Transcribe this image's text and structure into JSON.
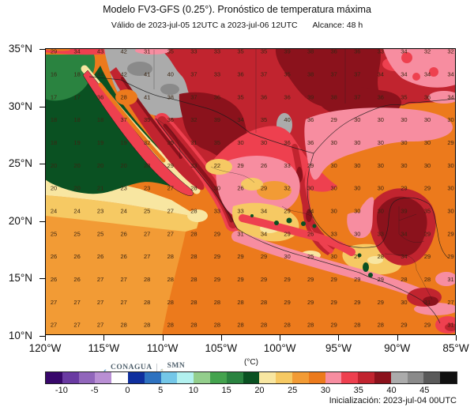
{
  "header": {
    "title": "Modelo FV3-GFS (0.25°). Pronóstico de temperatura máxima",
    "valid_text": "Válido de 2023-jul-05 12UTC a 2023-jul-06 12UTC",
    "range_text": "Alcance: 48 h"
  },
  "footer": {
    "init_text": "Inicialización: 2023-jul-04 00UTC"
  },
  "logos": {
    "conagua": "CONAGUA",
    "conagua_sub": "COMISIÓN NACIONAL DEL AGUA",
    "smn": "SMN",
    "smn_sub1": "SERVICIO",
    "smn_sub2": "METEOROLÓGICO NACIONAL",
    "conagua_blue": "#1B75BB",
    "smn_gold": "#C8960C"
  },
  "chart_data": {
    "type": "heatmap",
    "title": "Modelo FV3-GFS (0.25°). Pronóstico de temperatura máxima",
    "subtitle": "Válido de 2023-jul-05 12UTC a 2023-jul-06 12UTC  Alcance: 48 h",
    "lat_ticks": [
      {
        "label": "35°N",
        "lat": 35
      },
      {
        "label": "30°N",
        "lat": 30
      },
      {
        "label": "25°N",
        "lat": 25
      },
      {
        "label": "20°N",
        "lat": 20
      },
      {
        "label": "15°N",
        "lat": 15
      },
      {
        "label": "10°N",
        "lat": 10
      }
    ],
    "lon_ticks": [
      {
        "label": "120°W",
        "lon": 120
      },
      {
        "label": "115°W",
        "lon": 115
      },
      {
        "label": "110°W",
        "lon": 110
      },
      {
        "label": "105°W",
        "lon": 105
      },
      {
        "label": "100°W",
        "lon": 100
      },
      {
        "label": "95°W",
        "lon": 95
      },
      {
        "label": "90°W",
        "lon": 90
      },
      {
        "label": "85°W",
        "lon": 85
      }
    ],
    "grid_row_lats": [
      35,
      33,
      31,
      29,
      27,
      25,
      23,
      21,
      19,
      17,
      15,
      13,
      11
    ],
    "values": [
      [
        29,
        34,
        43,
        42,
        31,
        35,
        33,
        33,
        35,
        35,
        39,
        38,
        36,
        36,
        33,
        34,
        32,
        32
      ],
      [
        16,
        18,
        44,
        42,
        41,
        40,
        37,
        33,
        36,
        37,
        35,
        38,
        37,
        37,
        34,
        34,
        34,
        34
      ],
      [
        17,
        17,
        36,
        28,
        41,
        38,
        37,
        36,
        35,
        36,
        36,
        39,
        38,
        37,
        36,
        35,
        36,
        34
      ],
      [
        18,
        18,
        18,
        37,
        35,
        36,
        32,
        39,
        34,
        35,
        40,
        36,
        29,
        30,
        30,
        30,
        30,
        30
      ],
      [
        18,
        19,
        19,
        19,
        32,
        35,
        31,
        35,
        30,
        30,
        36,
        36,
        30,
        30,
        30,
        30,
        30,
        29
      ],
      [
        20,
        20,
        20,
        20,
        28,
        29,
        33,
        22,
        29,
        26,
        33,
        29,
        30,
        30,
        30,
        30,
        30,
        30
      ],
      [
        20,
        20,
        21,
        23,
        23,
        27,
        28,
        30,
        26,
        29,
        32,
        30,
        30,
        30,
        30,
        29,
        29,
        30
      ],
      [
        24,
        24,
        23,
        24,
        25,
        27,
        28,
        33,
        33,
        34,
        29,
        34,
        30,
        30,
        30,
        39,
        35,
        30
      ],
      [
        25,
        25,
        25,
        26,
        27,
        27,
        28,
        29,
        31,
        34,
        29,
        26,
        33,
        30,
        33,
        34,
        29,
        29
      ],
      [
        26,
        26,
        26,
        26,
        27,
        28,
        28,
        29,
        29,
        29,
        30,
        25,
        30,
        27,
        28,
        34,
        29,
        29
      ],
      [
        26,
        26,
        27,
        27,
        28,
        28,
        28,
        29,
        29,
        29,
        29,
        29,
        29,
        29,
        29,
        28,
        28,
        31
      ],
      [
        27,
        27,
        27,
        27,
        28,
        28,
        28,
        28,
        28,
        28,
        29,
        29,
        29,
        29,
        29,
        30,
        31,
        27
      ],
      [
        27,
        27,
        27,
        28,
        28,
        28,
        28,
        28,
        28,
        28,
        28,
        28,
        29,
        28,
        28,
        29,
        29,
        31
      ]
    ],
    "colorbar": {
      "label": "(°C)",
      "range": [
        -12.5,
        50
      ],
      "step": 2.5,
      "ticks": [
        -10,
        -5,
        0,
        5,
        10,
        15,
        20,
        25,
        30,
        35,
        40,
        45
      ],
      "segment_colors": [
        "#38076B",
        "#6A3AA2",
        "#9166BB",
        "#B98FD4",
        "#FFFFFF",
        "#0F2F9E",
        "#2E72C0",
        "#74C7E8",
        "#B2F1EF",
        "#93CE8C",
        "#44A34E",
        "#2A8340",
        "#0A5122",
        "#F8E6A1",
        "#F6C963",
        "#F29B35",
        "#EC7A1C",
        "#F78DA0",
        "#EE404F",
        "#C1242F",
        "#8B121C",
        "#ABABAB",
        "#8A8A8A",
        "#5A5A5A",
        "#111111"
      ]
    }
  }
}
